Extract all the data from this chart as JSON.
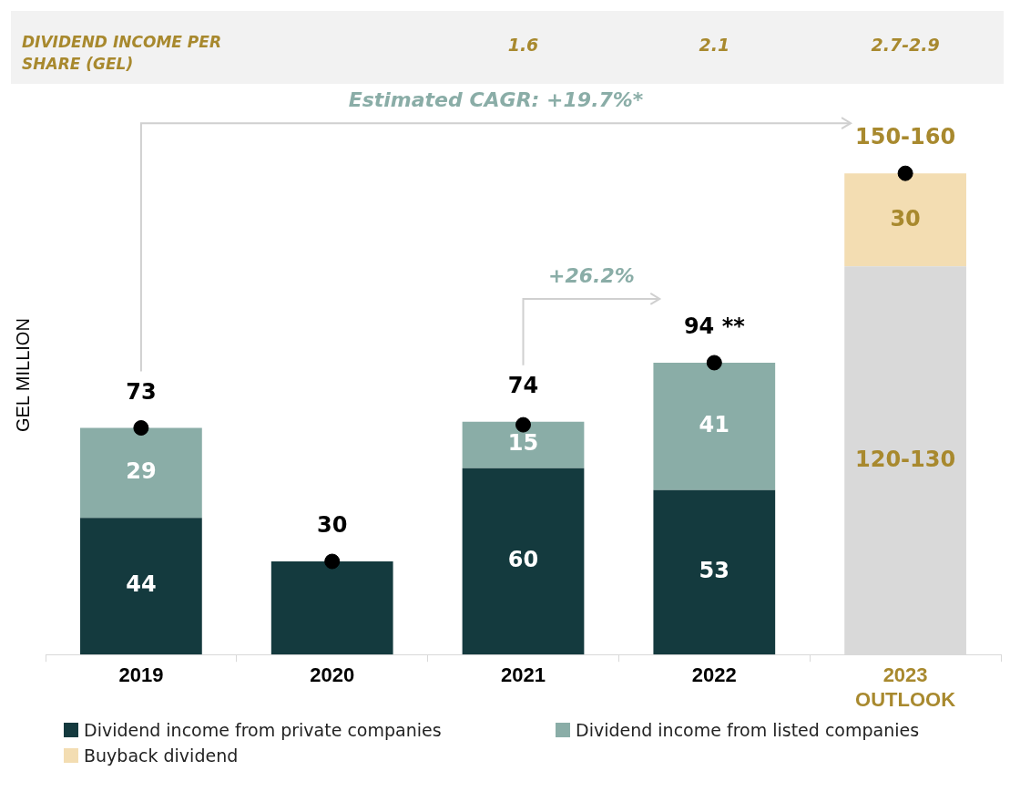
{
  "chart_data": {
    "type": "bar",
    "stacked": true,
    "ylabel": "GEL MILLION",
    "tick_labels": "x",
    "grid": false,
    "legend": "bottom",
    "categories": [
      "2019",
      "2020",
      "2021",
      "2022",
      "2023 OUTLOOK"
    ],
    "series": [
      {
        "name": "Dividend income from private companies",
        "color": "#143a3e",
        "values": [
          44,
          30,
          60,
          53,
          null
        ],
        "value_labels": [
          "44",
          null,
          "60",
          "53",
          null
        ]
      },
      {
        "color": "#d9d9d9",
        "values": [
          null,
          null,
          null,
          null,
          125
        ],
        "value_labels": [
          null,
          null,
          null,
          null,
          "120-130"
        ]
      },
      {
        "name": "Dividend income from listed companies",
        "color": "#8aada7",
        "values": [
          29,
          null,
          15,
          41,
          null
        ],
        "value_labels": [
          "29",
          null,
          "15",
          "41",
          null
        ]
      },
      {
        "name": "Buyback dividend",
        "color": "#f3ddb2",
        "values": [
          null,
          null,
          null,
          null,
          30
        ],
        "value_labels": [
          null,
          null,
          null,
          null,
          "30"
        ]
      },
      {
        "type": "scatter",
        "color": "#000000",
        "marker": "circle",
        "values": [
          73,
          30,
          74,
          94,
          155
        ]
      }
    ],
    "totals": [
      "73",
      "30",
      "74",
      "94 **",
      "150-160"
    ],
    "annotations": [
      "DIVIDEND INCOME PER SHARE (GEL)",
      "1.6",
      "2.1",
      "2.7-2.9",
      "Estimated CAGR: +19.7%*",
      "+26.2%"
    ]
  }
}
